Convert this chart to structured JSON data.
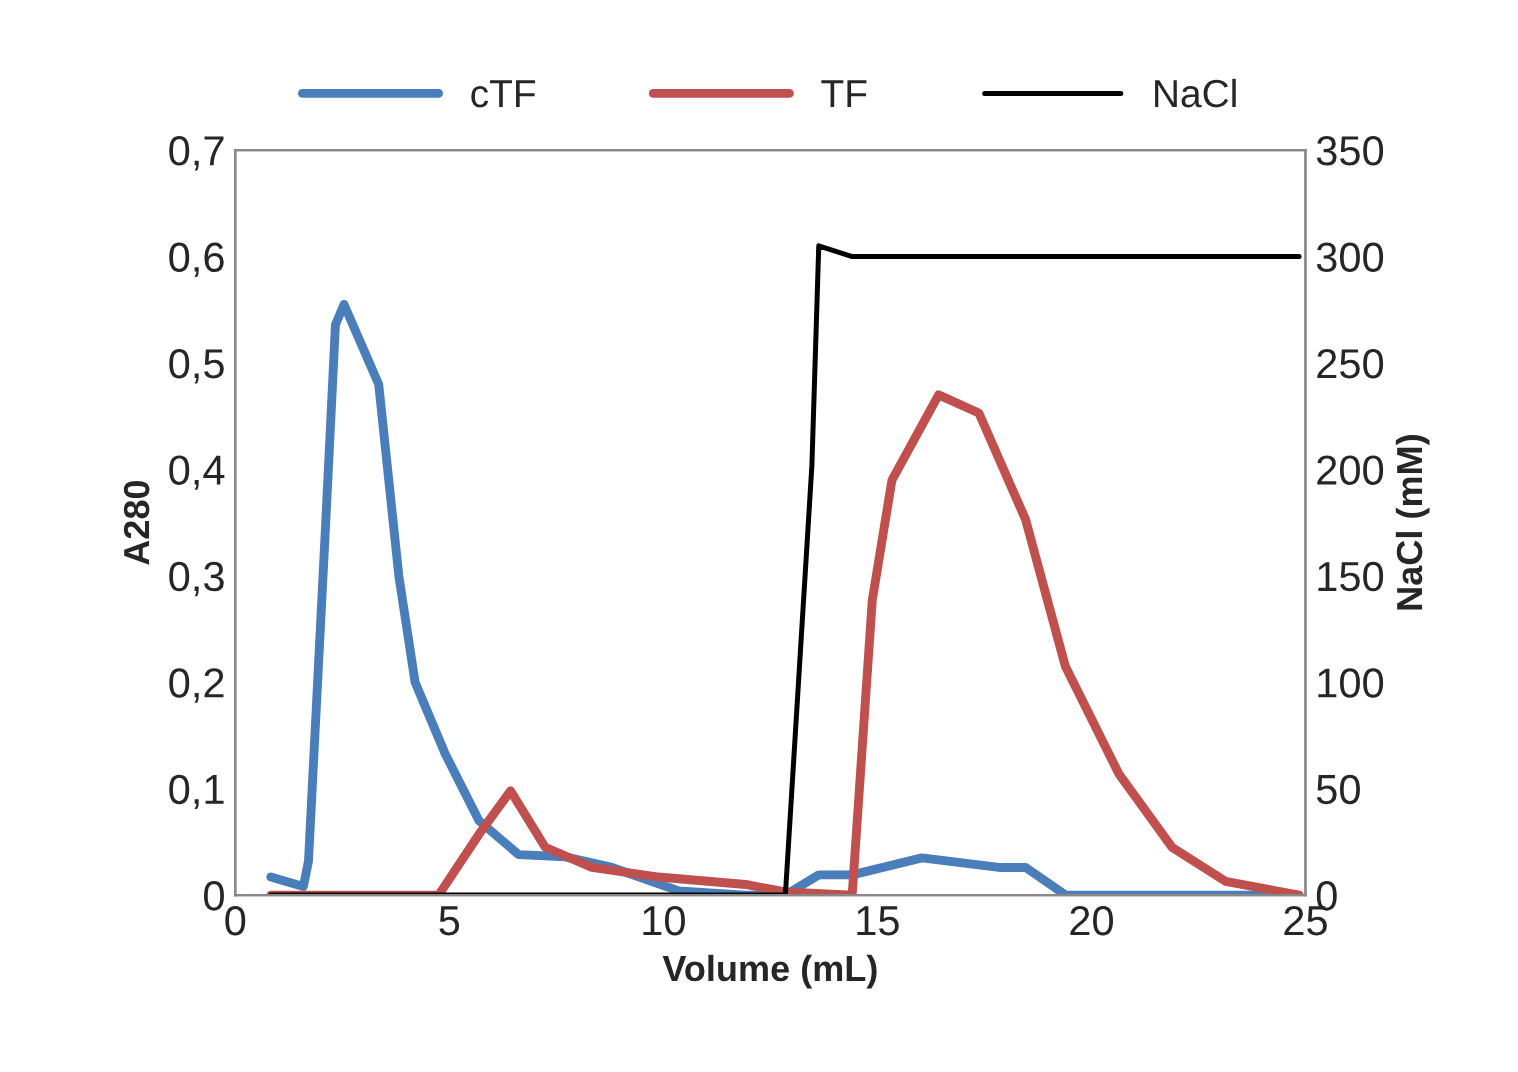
{
  "chart_data": {
    "type": "line",
    "xlabel": "Volume (mL)",
    "ylabel": "A280",
    "y2label": "NaCl (mM)",
    "xlim": [
      0,
      25
    ],
    "xticks": [
      0,
      5,
      10,
      15,
      20,
      25
    ],
    "ylim": [
      0,
      0.7
    ],
    "yticks": [
      0,
      {
        "value": 0.1,
        "label": "0,1"
      },
      {
        "value": 0.2,
        "label": "0,2"
      },
      {
        "value": 0.3,
        "label": "0,3"
      },
      {
        "value": 0.4,
        "label": "0,4"
      },
      {
        "value": 0.5,
        "label": "0,5"
      },
      {
        "value": 0.6,
        "label": "0,6"
      },
      {
        "value": 0.7,
        "label": "0,7"
      }
    ],
    "y2lim": [
      0,
      350
    ],
    "y2ticks": [
      0,
      50,
      100,
      150,
      200,
      250,
      300,
      350
    ],
    "grid": false,
    "legend": "top",
    "marker": "none",
    "line_style": "solid",
    "series": [
      {
        "name": "cTF",
        "color": "#4a7ebb",
        "x": [
          0.83,
          1.59,
          1.71,
          2.1,
          2.34,
          2.54,
          3.35,
          3.82,
          4.2,
          4.9,
          5.69,
          6.62,
          7.71,
          8.8,
          10.36,
          11.9,
          12.85,
          13.63,
          14.41,
          16.04,
          17.84,
          18.46,
          19.4,
          24.85
        ],
        "values": [
          0.017,
          0.008,
          0.032,
          0.34,
          0.536,
          0.555,
          0.48,
          0.3,
          0.2,
          0.133,
          0.07,
          0.038,
          0.036,
          0.026,
          0.004,
          0.0,
          0.0,
          0.019,
          0.019,
          0.035,
          0.026,
          0.026,
          0.0,
          0.0
        ]
      },
      {
        "name": "TF",
        "color": "#c0504d",
        "x": [
          0.83,
          4.75,
          5.69,
          6.43,
          7.24,
          8.33,
          9.89,
          11.92,
          12.85,
          14.41,
          14.88,
          15.34,
          16.43,
          17.37,
          18.46,
          19.39,
          20.64,
          21.88,
          23.13,
          24.85
        ],
        "values": [
          0,
          0,
          0.057,
          0.098,
          0.045,
          0.026,
          0.017,
          0.01,
          0.003,
          0,
          0.277,
          0.39,
          0.47,
          0.453,
          0.353,
          0.215,
          0.114,
          0.045,
          0.013,
          0.0
        ]
      },
      {
        "name": "NaCl",
        "color": "#000000",
        "axis": "y2",
        "x": [
          0.83,
          12.85,
          13.47,
          13.63,
          14.41,
          24.85
        ],
        "values": [
          0,
          0,
          202,
          305,
          300,
          300
        ]
      }
    ]
  }
}
